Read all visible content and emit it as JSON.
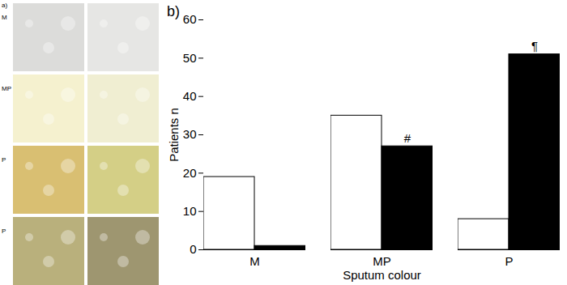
{
  "chart_data": {
    "type": "bar",
    "panel_label": "b)",
    "xlabel": "Sputum colour",
    "ylabel": "Patients n",
    "categories": [
      "M",
      "MP",
      "P"
    ],
    "series": [
      {
        "color": "#ffffff",
        "values": [
          19,
          35,
          8
        ]
      },
      {
        "color": "#000000",
        "values": [
          1,
          27,
          51
        ]
      }
    ],
    "ylim": [
      0,
      60
    ],
    "yticks": [
      0,
      10,
      20,
      30,
      40,
      50,
      60
    ],
    "annotations": [
      {
        "text": "#",
        "category": "MP",
        "series": 1
      },
      {
        "text": "¶",
        "category": "P",
        "series": 1
      }
    ]
  },
  "image_panel": {
    "panel_label": "a)",
    "row_labels": [
      "M",
      "MP",
      "P",
      "P"
    ]
  }
}
